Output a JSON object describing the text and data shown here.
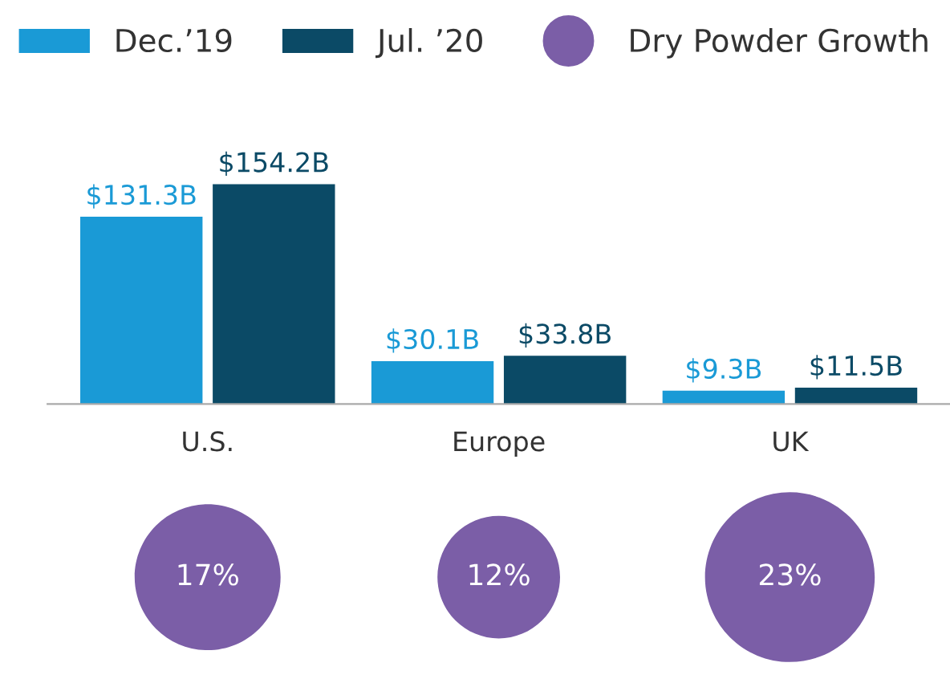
{
  "chart_data": [
    {
      "type": "bar",
      "categories": [
        "U.S.",
        "Europe",
        "UK"
      ],
      "series": [
        {
          "name": "Dec.’19",
          "color": "#1a9ad6",
          "values": [
            131.3,
            30.1,
            9.3
          ],
          "value_labels": [
            "$131.3B",
            "$30.1B",
            "$9.3B"
          ]
        },
        {
          "name": "Jul. ’20",
          "color": "#0b4a66",
          "values": [
            154.2,
            33.8,
            11.5
          ],
          "value_labels": [
            "$154.2B",
            "$33.8B",
            "$11.5B"
          ]
        }
      ],
      "legend": "top"
    },
    {
      "type": "other",
      "series": [
        {
          "name": "Dry Powder Growth",
          "color": "#7b5ea7",
          "values": [
            17,
            12,
            23
          ],
          "value_labels": [
            "17%",
            "12%",
            "23%"
          ]
        }
      ],
      "legend": "top"
    }
  ]
}
